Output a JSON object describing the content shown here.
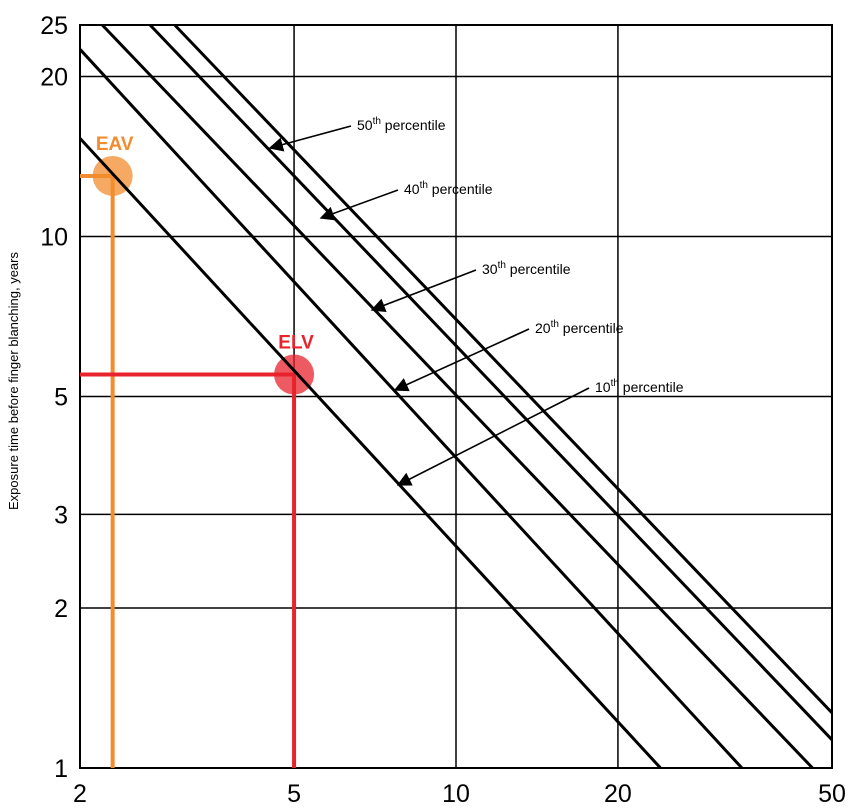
{
  "chart_data": {
    "type": "line",
    "title": "",
    "xlabel": "",
    "ylabel": "Exposure time before finger blanching, years",
    "x_scale": "log",
    "y_scale": "log",
    "xlim": [
      2,
      50
    ],
    "ylim": [
      1,
      25
    ],
    "grid": true,
    "x_ticks": [
      "2",
      "5",
      "10",
      "20",
      "50"
    ],
    "y_ticks": [
      "1",
      "2",
      "3",
      "5",
      "10",
      "20",
      "25"
    ],
    "series": [
      {
        "name": "10th percentile",
        "sup": "th",
        "label_rest": " percentile",
        "label_num": "10",
        "points": [
          [
            2,
            15.3
          ],
          [
            24,
            1
          ]
        ]
      },
      {
        "name": "20th percentile",
        "sup": "th",
        "label_rest": " percentile",
        "label_num": "20",
        "points": [
          [
            2,
            22.5
          ],
          [
            34,
            1
          ]
        ]
      },
      {
        "name": "30th percentile",
        "sup": "th",
        "label_rest": " percentile",
        "label_num": "30",
        "points": [
          [
            2.2,
            25
          ],
          [
            46,
            1
          ]
        ]
      },
      {
        "name": "40th percentile",
        "sup": "th",
        "label_rest": " percentile",
        "label_num": "40",
        "points": [
          [
            2.7,
            25
          ],
          [
            50,
            1.13
          ]
        ]
      },
      {
        "name": "50th percentile",
        "sup": "th",
        "label_rest": " percentile",
        "label_num": "50",
        "points": [
          [
            3.0,
            25
          ],
          [
            50,
            1.27
          ]
        ]
      }
    ],
    "annotations": [
      {
        "label": "EAV",
        "color": "#f28c2e",
        "x": 2.3,
        "y": 13
      },
      {
        "label": "ELV",
        "color": "#e8232c",
        "x": 5.0,
        "y": 5.5
      }
    ]
  }
}
